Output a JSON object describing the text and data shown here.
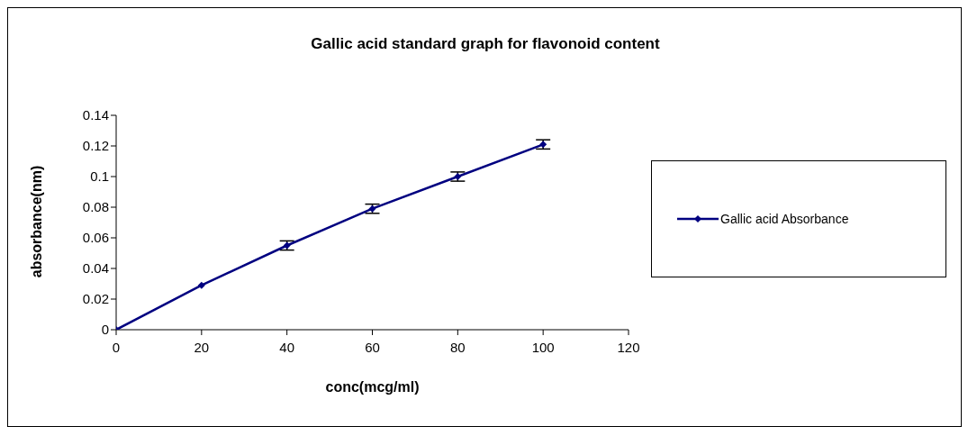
{
  "chart_data": {
    "type": "line",
    "title": "Gallic acid standard graph for flavonoid content",
    "xlabel": "conc(mcg/ml)",
    "ylabel": "absorbance(nm)",
    "x": [
      0,
      20,
      40,
      60,
      80,
      100
    ],
    "series": [
      {
        "name": "Gallic acid Absorbance",
        "color": "#000080",
        "values": [
          0,
          0.029,
          0.055,
          0.079,
          0.1,
          0.121
        ],
        "errors": [
          null,
          null,
          0.003,
          0.003,
          0.003,
          0.003
        ]
      }
    ],
    "xlim": [
      0,
      120
    ],
    "xticks": [
      0,
      20,
      40,
      60,
      80,
      100,
      120
    ],
    "ylim": [
      0,
      0.14
    ],
    "yticks": [
      0,
      0.02,
      0.04,
      0.06,
      0.08,
      0.1,
      0.12,
      0.14
    ],
    "grid": false,
    "legend": "right",
    "marker": "diamond",
    "line_style": "solid"
  }
}
